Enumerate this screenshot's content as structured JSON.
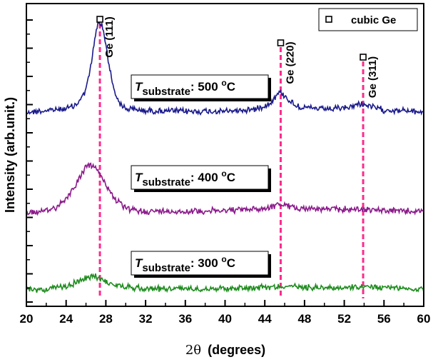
{
  "chart_data": {
    "type": "line",
    "xlabel_symbol": "2θ",
    "xlabel_paren": "(degrees)",
    "ylabel": "Intensity (arb.unit.)",
    "xlim": [
      20,
      60
    ],
    "x_ticks": [
      20,
      24,
      28,
      32,
      36,
      40,
      44,
      48,
      52,
      56,
      60
    ],
    "x_tick_labels": [
      "20",
      "24",
      "28",
      "32",
      "36",
      "40",
      "44",
      "48",
      "52",
      "56",
      "60"
    ],
    "y_ticks_labeled": false,
    "legend": {
      "label": "cubic Ge",
      "marker": "open-square",
      "placement": "top-right"
    },
    "reference_peaks": [
      {
        "label": "Ge (111)",
        "x": 27.4
      },
      {
        "label": "Ge (220)",
        "x": 45.6
      },
      {
        "label": "Ge (311)",
        "x": 53.9
      }
    ],
    "series": [
      {
        "temp_prefix": "T",
        "temp_subscript": "substrate",
        "temp_value": ": 500 ",
        "temp_sup": "o",
        "temp_unit": "C",
        "color": "#1a1a8c",
        "x": [
          20,
          22,
          24,
          25,
          25.8,
          26.4,
          26.8,
          27.2,
          27.6,
          28.0,
          28.4,
          28.8,
          29.4,
          30,
          32,
          36,
          40,
          43,
          44.5,
          45.2,
          45.6,
          46.2,
          47,
          48,
          50,
          52,
          53,
          53.7,
          54.2,
          55,
          56,
          58,
          60
        ],
        "y": [
          0.0,
          0.02,
          0.05,
          0.1,
          0.25,
          0.55,
          0.95,
          1.25,
          1.22,
          0.95,
          0.6,
          0.32,
          0.12,
          0.05,
          0.02,
          0.01,
          0.01,
          0.04,
          0.12,
          0.24,
          0.28,
          0.2,
          0.1,
          0.06,
          0.04,
          0.05,
          0.09,
          0.12,
          0.1,
          0.06,
          0.03,
          0.02,
          0.0
        ]
      },
      {
        "temp_prefix": "T",
        "temp_subscript": "substrate",
        "temp_value": ": 400 ",
        "temp_sup": "o",
        "temp_unit": "C",
        "color": "#8b1a8b",
        "x": [
          20,
          22,
          23,
          24,
          25,
          25.8,
          26.4,
          27.0,
          27.6,
          28.2,
          29,
          30,
          31,
          32,
          36,
          40,
          44,
          45.5,
          47,
          50,
          54,
          56,
          60
        ],
        "y": [
          0.0,
          0.02,
          0.08,
          0.2,
          0.4,
          0.6,
          0.68,
          0.62,
          0.5,
          0.35,
          0.18,
          0.06,
          0.03,
          0.02,
          0.02,
          0.03,
          0.06,
          0.12,
          0.07,
          0.05,
          0.05,
          0.03,
          0.02
        ]
      },
      {
        "temp_prefix": "T",
        "temp_subscript": "substrate",
        "temp_value": ": 300 ",
        "temp_sup": "o",
        "temp_unit": "C",
        "color": "#1e8c1e",
        "x": [
          20,
          22,
          24,
          25,
          26,
          26.8,
          27.6,
          28.5,
          30,
          32,
          36,
          40,
          44,
          46,
          48,
          52,
          56,
          58,
          60
        ],
        "y": [
          0.0,
          0.01,
          0.05,
          0.1,
          0.16,
          0.2,
          0.15,
          0.08,
          0.04,
          0.02,
          0.02,
          0.02,
          0.04,
          0.05,
          0.04,
          0.03,
          0.04,
          0.02,
          0.01
        ]
      }
    ]
  }
}
